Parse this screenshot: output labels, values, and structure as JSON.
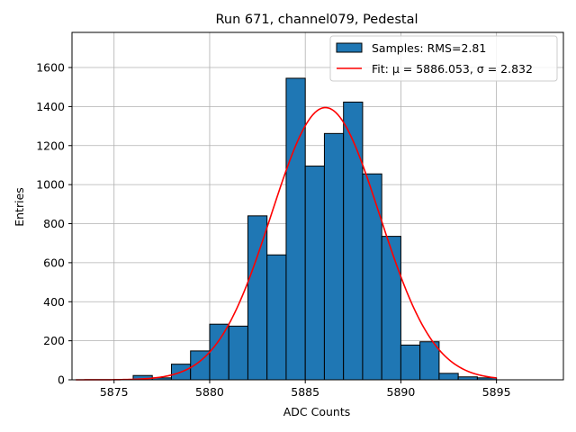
{
  "chart_data": {
    "type": "bar",
    "title": "Run 671, channel079, Pedestal",
    "xlabel": "ADC Counts",
    "ylabel": "Entries",
    "xlim": [
      5872.8,
      5898.5
    ],
    "ylim": [
      0,
      1780
    ],
    "x_ticks": [
      5875,
      5880,
      5885,
      5890,
      5895
    ],
    "y_ticks": [
      0,
      200,
      400,
      600,
      800,
      1000,
      1200,
      1400,
      1600
    ],
    "grid": true,
    "bin_width": 1,
    "bins": [
      {
        "x0": 5876,
        "value": 22
      },
      {
        "x0": 5877,
        "value": 10
      },
      {
        "x0": 5878,
        "value": 80
      },
      {
        "x0": 5879,
        "value": 148
      },
      {
        "x0": 5880,
        "value": 285
      },
      {
        "x0": 5881,
        "value": 275
      },
      {
        "x0": 5882,
        "value": 840
      },
      {
        "x0": 5883,
        "value": 640
      },
      {
        "x0": 5884,
        "value": 1545
      },
      {
        "x0": 5885,
        "value": 1095
      },
      {
        "x0": 5886,
        "value": 1262
      },
      {
        "x0": 5887,
        "value": 1423
      },
      {
        "x0": 5888,
        "value": 1055
      },
      {
        "x0": 5889,
        "value": 735
      },
      {
        "x0": 5890,
        "value": 178
      },
      {
        "x0": 5891,
        "value": 195
      },
      {
        "x0": 5892,
        "value": 33
      },
      {
        "x0": 5893,
        "value": 15
      },
      {
        "x0": 5894,
        "value": 10
      }
    ],
    "fit": {
      "mu": 5886.053,
      "sigma": 2.832,
      "amplitude": 1395,
      "x_range": [
        5873,
        5895
      ]
    },
    "legend": {
      "position": "top-right",
      "entries": [
        {
          "label": "Samples: RMS=2.81",
          "kind": "patch",
          "color": "#1f77b4"
        },
        {
          "label": "Fit: μ = 5886.053, σ = 2.832",
          "kind": "line",
          "color": "#ff0000"
        }
      ]
    },
    "colors": {
      "bar": "#1f77b4",
      "edge": "#000000",
      "fit": "#ff0000",
      "grid": "#b0b0b0"
    }
  }
}
